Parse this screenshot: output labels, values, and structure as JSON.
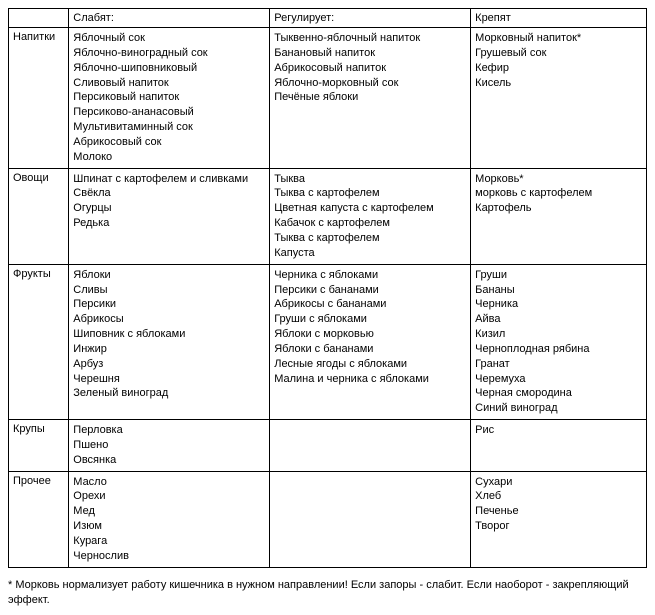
{
  "table": {
    "headers": {
      "rowLabel": "",
      "col1": "Слабят:",
      "col2": "Регулирует:",
      "col3": "Крепят"
    },
    "rows": [
      {
        "label": "Напитки",
        "col1": [
          "Яблочный сок",
          "Яблочно-виноградный сок",
          "Яблочно-шиповниковый",
          "Сливовый напиток",
          "Персиковый напиток",
          "Персиково-ананасовый",
          "Мультивитаминный сок",
          "Абрикосовый сок",
          "Молоко"
        ],
        "col2": [
          "Тыквенно-яблочный напиток",
          "Банановый напиток",
          "Абрикосовый напиток",
          "Яблочно-морковный сок",
          "Печёные яблоки"
        ],
        "col3": [
          "Морковный напиток*",
          "Грушевый сок",
          "Кефир",
          "Кисель"
        ]
      },
      {
        "label": "Овощи",
        "col1": [
          "Шпинат с картофелем и сливками",
          "Свёкла",
          "Огурцы",
          "Редька"
        ],
        "col2": [
          "Тыква",
          "Тыква с картофелем",
          "Цветная капуста с картофелем",
          "Кабачок с картофелем",
          "Тыква с картофелем",
          "Капуста"
        ],
        "col3": [
          "Морковь*",
          "морковь с картофелем",
          "Картофель"
        ]
      },
      {
        "label": "Фрукты",
        "col1": [
          "Яблоки",
          "Сливы",
          "Персики",
          "Абрикосы",
          "Шиповник с яблоками",
          "Инжир",
          "Арбуз",
          "Черешня",
          "Зеленый виноград"
        ],
        "col2": [
          "Черника с яблоками",
          "Персики с бананами",
          "Абрикосы с бананами",
          "Груши с яблоками",
          "Яблоки с морковью",
          "Яблоки с бананами",
          "Лесные ягоды с яблоками",
          "Малина и черника с яблоками"
        ],
        "col3": [
          "Груши",
          "Бананы",
          "Черника",
          "Айва",
          "Кизил",
          "Черноплодная рябина",
          "Гранат",
          "Черемуха",
          "Черная смородина",
          "Синий виноград"
        ]
      },
      {
        "label": "Крупы",
        "col1": [
          "Перловка",
          "Пшено",
          "Овсянка"
        ],
        "col2": [],
        "col3": [
          "Рис"
        ]
      },
      {
        "label": "Прочее",
        "col1": [
          "Масло",
          "Орехи",
          "Мед",
          "Изюм",
          "Курага",
          "Чернослив"
        ],
        "col2": [],
        "col3": [
          "Сухари",
          "Хлеб",
          "Печенье",
          "Творог"
        ]
      }
    ]
  },
  "footnote": "* Морковь нормализует работу кишечника в нужном направлении! Если запоры - слабит. Если наоборот - закрепляющий эффект."
}
